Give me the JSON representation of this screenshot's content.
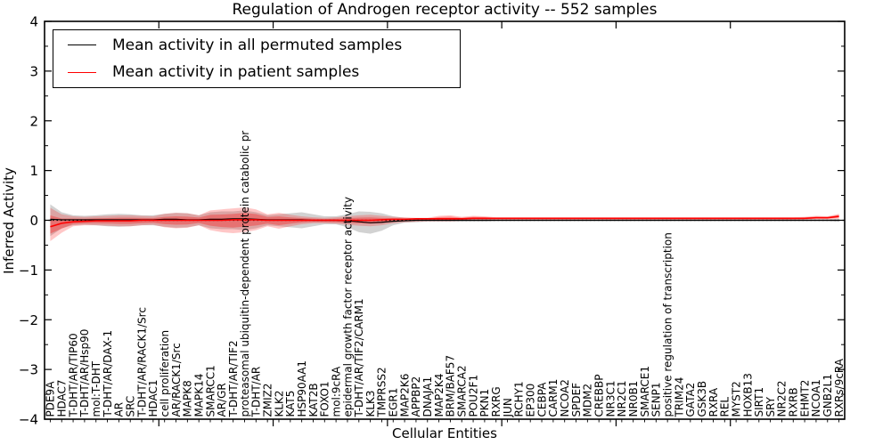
{
  "title": "Regulation of Androgen receptor activity -- 552 samples",
  "legend": {
    "items": [
      {
        "label": "Mean activity in all permuted samples",
        "color": "#000000"
      },
      {
        "label": "Mean activity in patient samples",
        "color": "#ff0000"
      }
    ]
  },
  "axes": {
    "ylabel": "Inferred Activity",
    "xlabel": "Cellular Entities",
    "yticks": [
      4,
      3,
      2,
      1,
      0,
      -1,
      -2,
      -3,
      -4
    ],
    "ylim": [
      -4,
      4
    ]
  },
  "chart_data": {
    "type": "line",
    "title": "Regulation of Androgen receptor activity -- 552 samples",
    "xlabel": "Cellular Entities",
    "ylabel": "Inferred Activity",
    "ylim": [
      -4,
      4
    ],
    "grid": false,
    "legend_position": "upper left",
    "zero_line": {
      "style": "dotted",
      "color": "#000000",
      "y": 0
    },
    "categories": [
      "PDE9A",
      "HDAC7",
      "T-DHT/AR/TIP60",
      "T-DHT/AR/Hsp90",
      "mol:T-DHT",
      "T-DHT/AR/DAX-1",
      "AR",
      "SRC",
      "T-DHT/AR/RACK1/Src",
      "HDAC1",
      "cell proliferation",
      "AR/RACK1/Src",
      "MAPK8",
      "MAPK14",
      "SMARCC1",
      "AR/GR",
      "T-DHT/AR/TIF2",
      "proteasomal ubiquitin-dependent protein catabolic pr",
      "T-DHT/AR",
      "ZMIZ2",
      "KLK2",
      "KAT5",
      "HSP90AA1",
      "KAT2B",
      "FOXO1",
      "mol:9cRA",
      "epidermal growth factor receptor activity",
      "T-DHT/AR/TIF2/CARM1",
      "KLK3",
      "TMPRSS2",
      "EGR1",
      "MAP2K6",
      "APPBP2",
      "DNAJA1",
      "MAP2K4",
      "BRM/BAF57",
      "SMARCA2",
      "POU2F1",
      "PKN1",
      "RXRG",
      "JUN",
      "RCHY1",
      "EP300",
      "CEBPA",
      "CARM1",
      "NCOA2",
      "SPDEF",
      "MDM2",
      "CREBBP",
      "NR3C1",
      "NR2C1",
      "NR0B1",
      "SMARCE1",
      "SENP1",
      "positive regulation of transcription",
      "TRIM24",
      "GATA2",
      "GSK3B",
      "RXRA",
      "REL",
      "MYST2",
      "HOXB13",
      "SIRT1",
      "SRY",
      "NR2C2",
      "RXRB",
      "EHMT2",
      "NCOA1",
      "GNB2L1",
      "RXRs/9cRA"
    ],
    "series": [
      {
        "name": "Mean activity in all permuted samples",
        "color": "#000000",
        "values": [
          0.02,
          0.01,
          0.01,
          0.01,
          0.01,
          0.01,
          0.01,
          0.01,
          0.01,
          0.01,
          0.02,
          0.02,
          0.01,
          0.01,
          0.02,
          0.02,
          0.03,
          0.03,
          0.02,
          0.01,
          0.01,
          0.01,
          0.01,
          0.0,
          0.0,
          0.0,
          -0.01,
          -0.03,
          -0.05,
          -0.04,
          -0.02,
          -0.01,
          0.0,
          0.0,
          0.0,
          0.0,
          0.0,
          0.0,
          0.0,
          0.0,
          0.0,
          0.0,
          0.0,
          0.0,
          0.0,
          0.0,
          0.0,
          0.0,
          0.0,
          0.0,
          0.0,
          0.0,
          0.0,
          0.0,
          0.0,
          0.0,
          0.0,
          0.0,
          0.0,
          0.0,
          0.0,
          0.0,
          0.0,
          0.0,
          0.0,
          0.0,
          0.0,
          0.0,
          0.0,
          0.0
        ]
      },
      {
        "name": "Mean activity in patient samples",
        "color": "#ff0000",
        "values": [
          -0.13,
          -0.06,
          -0.03,
          -0.02,
          -0.01,
          -0.01,
          -0.01,
          -0.01,
          0.0,
          0.0,
          0.0,
          0.0,
          0.0,
          0.0,
          0.0,
          0.0,
          0.01,
          0.01,
          0.01,
          0.0,
          0.0,
          0.0,
          0.0,
          0.0,
          0.0,
          0.0,
          0.0,
          0.0,
          0.0,
          0.01,
          0.02,
          0.02,
          0.03,
          0.03,
          0.03,
          0.03,
          0.03,
          0.04,
          0.04,
          0.04,
          0.04,
          0.04,
          0.04,
          0.04,
          0.04,
          0.04,
          0.04,
          0.04,
          0.04,
          0.04,
          0.04,
          0.04,
          0.04,
          0.04,
          0.04,
          0.04,
          0.04,
          0.04,
          0.04,
          0.04,
          0.04,
          0.04,
          0.04,
          0.04,
          0.04,
          0.04,
          0.04,
          0.05,
          0.05,
          0.08
        ]
      }
    ],
    "bands": [
      {
        "name": "permuted-range",
        "color": "#888888",
        "opacity": 0.38,
        "upper": [
          0.32,
          0.16,
          0.1,
          0.09,
          0.1,
          0.12,
          0.13,
          0.12,
          0.1,
          0.1,
          0.13,
          0.15,
          0.14,
          0.1,
          0.16,
          0.18,
          0.18,
          0.2,
          0.16,
          0.1,
          0.12,
          0.14,
          0.16,
          0.12,
          0.08,
          0.08,
          0.12,
          0.18,
          0.17,
          0.14,
          0.08,
          0.05,
          0.04,
          0.03,
          0.03,
          0.03,
          0.03,
          0.03,
          0.03,
          0.02,
          0.02,
          0.02,
          0.02,
          0.02,
          0.02,
          0.02,
          0.02,
          0.02,
          0.02,
          0.02,
          0.02,
          0.02,
          0.02,
          0.02,
          0.02,
          0.02,
          0.02,
          0.02,
          0.02,
          0.02,
          0.02,
          0.02,
          0.02,
          0.02,
          0.02,
          0.02,
          0.02,
          0.02,
          0.02,
          0.03
        ],
        "lower": [
          -0.32,
          -0.16,
          -0.1,
          -0.09,
          -0.1,
          -0.12,
          -0.13,
          -0.12,
          -0.1,
          -0.1,
          -0.13,
          -0.15,
          -0.14,
          -0.1,
          -0.16,
          -0.18,
          -0.18,
          -0.2,
          -0.16,
          -0.1,
          -0.12,
          -0.14,
          -0.16,
          -0.12,
          -0.08,
          -0.08,
          -0.14,
          -0.24,
          -0.27,
          -0.21,
          -0.1,
          -0.05,
          -0.04,
          -0.03,
          -0.03,
          -0.03,
          -0.03,
          -0.03,
          -0.03,
          -0.02,
          -0.02,
          -0.02,
          -0.02,
          -0.02,
          -0.02,
          -0.02,
          -0.02,
          -0.02,
          -0.02,
          -0.02,
          -0.02,
          -0.02,
          -0.02,
          -0.02,
          -0.02,
          -0.02,
          -0.02,
          -0.02,
          -0.02,
          -0.02,
          -0.02,
          -0.02,
          -0.02,
          -0.02,
          -0.02,
          -0.02,
          -0.02,
          -0.02,
          -0.02,
          -0.03
        ]
      },
      {
        "name": "patient-range",
        "color": "#ff0000",
        "opacity": 0.22,
        "upper": [
          0.25,
          0.12,
          0.08,
          0.07,
          0.08,
          0.09,
          0.1,
          0.1,
          0.09,
          0.08,
          0.13,
          0.15,
          0.14,
          0.1,
          0.2,
          0.22,
          0.24,
          0.26,
          0.22,
          0.12,
          0.15,
          0.11,
          0.08,
          0.06,
          0.05,
          0.06,
          0.08,
          0.1,
          0.11,
          0.09,
          0.07,
          0.06,
          0.05,
          0.05,
          0.09,
          0.1,
          0.07,
          0.09,
          0.08,
          0.06,
          0.06,
          0.06,
          0.06,
          0.06,
          0.06,
          0.06,
          0.06,
          0.06,
          0.06,
          0.06,
          0.06,
          0.06,
          0.06,
          0.06,
          0.06,
          0.06,
          0.06,
          0.06,
          0.06,
          0.06,
          0.06,
          0.06,
          0.06,
          0.06,
          0.06,
          0.06,
          0.07,
          0.09,
          0.08,
          0.13
        ],
        "lower": [
          -0.42,
          -0.25,
          -0.12,
          -0.1,
          -0.1,
          -0.11,
          -0.12,
          -0.12,
          -0.1,
          -0.09,
          -0.14,
          -0.16,
          -0.15,
          -0.1,
          -0.2,
          -0.24,
          -0.26,
          -0.24,
          -0.2,
          -0.12,
          -0.17,
          -0.12,
          -0.08,
          -0.06,
          -0.06,
          -0.07,
          -0.09,
          -0.11,
          -0.12,
          -0.1,
          -0.06,
          -0.04,
          -0.03,
          -0.02,
          -0.02,
          -0.02,
          -0.01,
          0.0,
          0.0,
          0.01,
          0.01,
          0.01,
          0.01,
          0.01,
          0.01,
          0.01,
          0.01,
          0.01,
          0.01,
          0.01,
          0.01,
          0.01,
          0.01,
          0.01,
          0.01,
          0.01,
          0.01,
          0.01,
          0.01,
          0.01,
          0.01,
          0.01,
          0.01,
          0.01,
          0.01,
          0.01,
          0.01,
          0.02,
          0.02,
          0.03
        ]
      }
    ]
  }
}
